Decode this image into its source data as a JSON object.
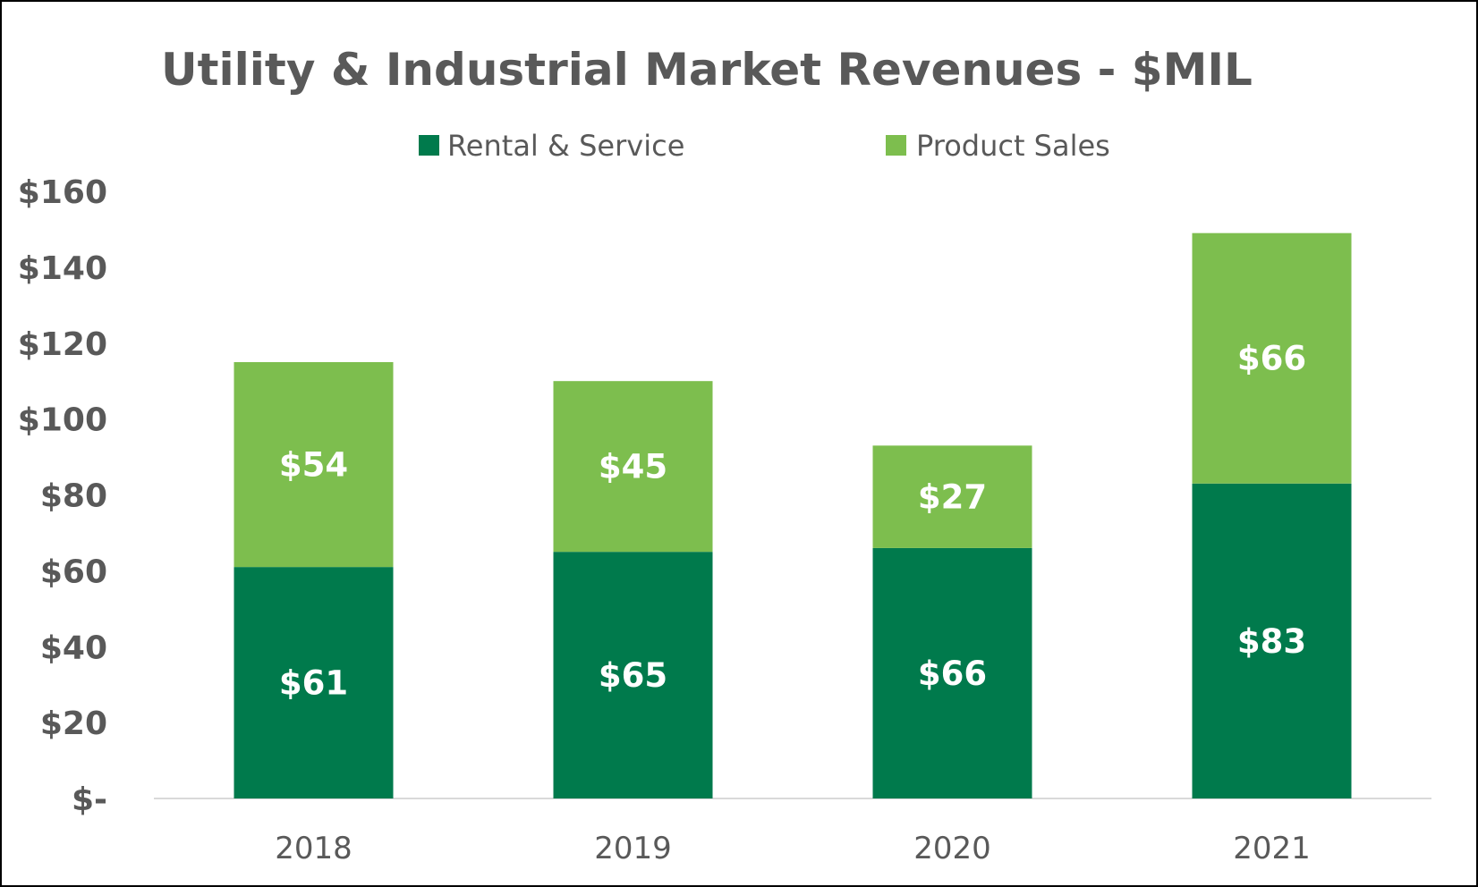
{
  "chart_data": {
    "type": "bar",
    "stacked": true,
    "title": "Utility & Industrial Market Revenues - $MIL",
    "categories": [
      "2018",
      "2019",
      "2020",
      "2021"
    ],
    "series": [
      {
        "name": "Rental & Service",
        "values": [
          61,
          65,
          66,
          83
        ],
        "labels": [
          "$61",
          "$65",
          "$66",
          "$83"
        ],
        "color": "#007A4C"
      },
      {
        "name": "Product Sales",
        "values": [
          54,
          45,
          27,
          66
        ],
        "labels": [
          "$54",
          "$45",
          "$27",
          "$66"
        ],
        "color": "#7DBE4E"
      }
    ],
    "ylim": [
      0,
      160
    ],
    "yticks": [
      0,
      20,
      40,
      60,
      80,
      100,
      120,
      140,
      160
    ],
    "ytick_labels": [
      "$-",
      "$20",
      "$40",
      "$60",
      "$80",
      "$100",
      "$120",
      "$140",
      "$160"
    ],
    "xlabel": "",
    "ylabel": "",
    "grid": false,
    "legend_position": "top"
  }
}
